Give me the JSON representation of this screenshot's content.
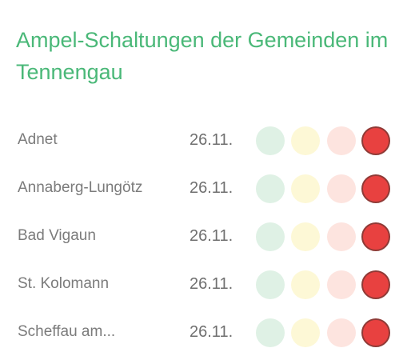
{
  "title": "Ampel-Schaltungen der Gemeinden im Tennengau",
  "colors": {
    "title": "#4ab878",
    "green_inactive": "#dff1e5",
    "yellow_inactive": "#fdf8d6",
    "orange_inactive": "#fde4df",
    "red_active": "#e84140"
  },
  "rows": [
    {
      "name": "Adnet",
      "date": "26.11.",
      "active_level": "red"
    },
    {
      "name": "Annaberg-Lungötz",
      "date": "26.11.",
      "active_level": "red"
    },
    {
      "name": "Bad Vigaun",
      "date": "26.11.",
      "active_level": "red"
    },
    {
      "name": "St. Kolomann",
      "date": "26.11.",
      "active_level": "red"
    },
    {
      "name": "Scheffau am...",
      "date": "26.11.",
      "active_level": "red"
    }
  ]
}
